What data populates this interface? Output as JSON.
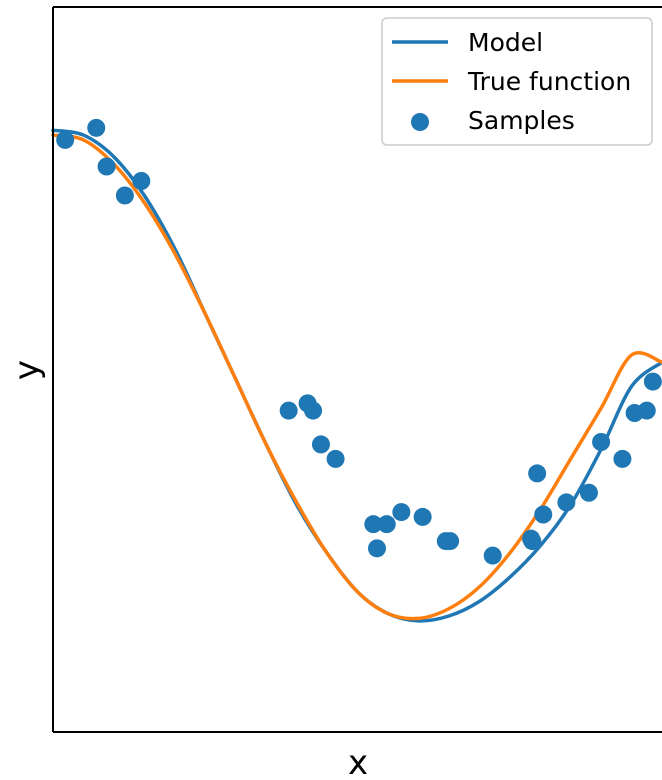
{
  "chart_data": {
    "type": "line",
    "title": "",
    "xlabel": "x",
    "ylabel": "y",
    "xlim": [
      0,
      1
    ],
    "ylim": [
      -1.5,
      1.5
    ],
    "xticks": [],
    "yticks": [],
    "grid": false,
    "legend_position": "top-right",
    "series": [
      {
        "name": "Model",
        "type": "line",
        "color": "#1f77b4",
        "x": [
          0.0,
          0.05,
          0.1,
          0.15,
          0.2,
          0.25,
          0.3,
          0.35,
          0.4,
          0.45,
          0.5,
          0.55,
          0.6,
          0.65,
          0.7,
          0.75,
          0.8,
          0.85,
          0.9,
          0.95,
          1.0
        ],
        "y": [
          0.99,
          0.97,
          0.88,
          0.72,
          0.5,
          0.23,
          -0.04,
          -0.31,
          -0.56,
          -0.76,
          -0.92,
          -1.01,
          -1.04,
          -1.02,
          -0.96,
          -0.86,
          -0.73,
          -0.56,
          -0.33,
          -0.07,
          0.03
        ]
      },
      {
        "name": "True function",
        "type": "line",
        "color": "#ff7f0e",
        "x": [
          0.0,
          0.05,
          0.1,
          0.15,
          0.2,
          0.25,
          0.3,
          0.35,
          0.4,
          0.45,
          0.5,
          0.55,
          0.6,
          0.65,
          0.7,
          0.75,
          0.8,
          0.85,
          0.9,
          0.95,
          1.0
        ],
        "y": [
          0.97,
          0.95,
          0.85,
          0.69,
          0.48,
          0.23,
          -0.04,
          -0.31,
          -0.55,
          -0.76,
          -0.92,
          -1.01,
          -1.03,
          -0.99,
          -0.9,
          -0.76,
          -0.58,
          -0.37,
          -0.16,
          0.06,
          0.03
        ]
      },
      {
        "name": "Samples",
        "type": "scatter",
        "color": "#1f77b4",
        "x": [
          0.02,
          0.071,
          0.088,
          0.118,
          0.145,
          0.387,
          0.418,
          0.427,
          0.44,
          0.464,
          0.526,
          0.532,
          0.548,
          0.572,
          0.607,
          0.645,
          0.652,
          0.722,
          0.785,
          0.787,
          0.795,
          0.805,
          0.843,
          0.88,
          0.9,
          0.935,
          0.955,
          0.975,
          0.985
        ],
        "y": [
          0.95,
          1.0,
          0.84,
          0.72,
          0.78,
          -0.17,
          -0.14,
          -0.17,
          -0.31,
          -0.37,
          -0.64,
          -0.74,
          -0.64,
          -0.59,
          -0.61,
          -0.71,
          -0.71,
          -0.77,
          -0.7,
          -0.71,
          -0.43,
          -0.6,
          -0.55,
          -0.51,
          -0.3,
          -0.37,
          -0.18,
          -0.17,
          -0.05
        ]
      }
    ]
  }
}
